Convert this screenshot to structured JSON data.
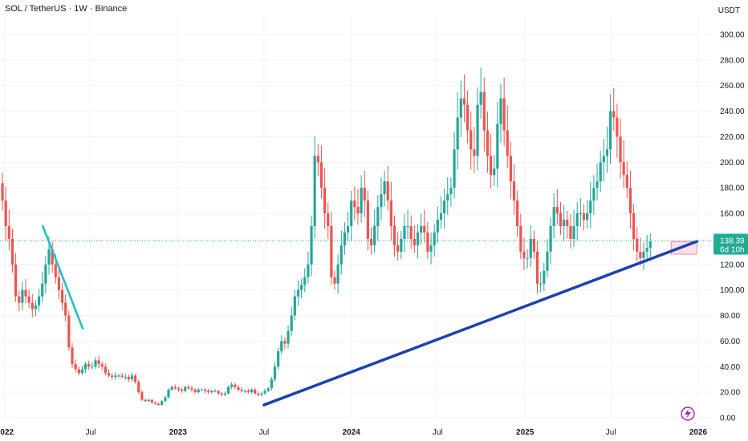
{
  "header": {
    "title": "SOL / TetherUS · 1W · Binance",
    "unit": "USDT"
  },
  "price_tag": {
    "price": "138.39",
    "countdown": "6d 10h",
    "color": "#22ab94"
  },
  "colors": {
    "up": "#26a69a",
    "down": "#ef5350",
    "trendline_main": "#1e40af",
    "trendline_small": "#22c1c3",
    "zone": "#f8bbd0",
    "grid": "#f0f3fa"
  },
  "chart_data": {
    "type": "candlestick",
    "y_axis": {
      "ticks": [
        "300.00",
        "280.00",
        "260.00",
        "240.00",
        "220.00",
        "200.00",
        "180.00",
        "160.00",
        "140.00",
        "120.00",
        "100.00",
        "80.00",
        "60.00",
        "40.00",
        "20.00",
        "0.00"
      ],
      "range": [
        0,
        300
      ],
      "position": "right"
    },
    "x_axis": {
      "labels": [
        {
          "text": "2022",
          "year": true,
          "date": "2022-01-01"
        },
        {
          "text": "Jul",
          "year": false,
          "date": "2022-07-01"
        },
        {
          "text": "2023",
          "year": true,
          "date": "2023-01-01"
        },
        {
          "text": "Jul",
          "year": false,
          "date": "2023-07-01"
        },
        {
          "text": "2024",
          "year": true,
          "date": "2024-01-01"
        },
        {
          "text": "Jul",
          "year": false,
          "date": "2024-07-01"
        },
        {
          "text": "2025",
          "year": true,
          "date": "2025-01-01"
        },
        {
          "text": "Jul",
          "year": false,
          "date": "2025-07-01"
        },
        {
          "text": "2026",
          "year": true,
          "date": "2026-01-01"
        }
      ]
    },
    "grid": true,
    "weekly_close": [
      170,
      150,
      140,
      120,
      95,
      90,
      100,
      95,
      90,
      85,
      88,
      95,
      105,
      120,
      132,
      120,
      110,
      100,
      90,
      80,
      55,
      42,
      38,
      35,
      38,
      42,
      40,
      40,
      45,
      42,
      40,
      35,
      33,
      32,
      33,
      33,
      32,
      32,
      30,
      33,
      28,
      20,
      14,
      13,
      14,
      12,
      11,
      10,
      13,
      16,
      22,
      24,
      23,
      22,
      21,
      24,
      23,
      22,
      20,
      22,
      22,
      21,
      20,
      21,
      21,
      19,
      18,
      19,
      24,
      26,
      24,
      22,
      21,
      21,
      20,
      22,
      19,
      18,
      19,
      21,
      23,
      30,
      40,
      52,
      60,
      58,
      68,
      80,
      95,
      100,
      104,
      110,
      120,
      150,
      205,
      200,
      180,
      160,
      150,
      110,
      105,
      120,
      135,
      145,
      150,
      170,
      165,
      160,
      180,
      170,
      140,
      135,
      150,
      165,
      175,
      185,
      170,
      150,
      135,
      130,
      140,
      150,
      150,
      140,
      135,
      145,
      150,
      145,
      130,
      135,
      145,
      155,
      160,
      170,
      175,
      180,
      210,
      235,
      250,
      245,
      225,
      210,
      205,
      245,
      255,
      225,
      205,
      190,
      195,
      230,
      250,
      225,
      205,
      185,
      170,
      150,
      130,
      125,
      125,
      140,
      130,
      105,
      105,
      115,
      130,
      150,
      165,
      160,
      150,
      155,
      150,
      140,
      150,
      160,
      160,
      155,
      160,
      170,
      180,
      185,
      200,
      205,
      210,
      240,
      235,
      220,
      200,
      190,
      180,
      160,
      140,
      130,
      125,
      130,
      133,
      138
    ],
    "annotations": [
      {
        "type": "trendline",
        "name": "main-uptrend",
        "from": {
          "date": "2023-07-01",
          "price": 10
        },
        "to": {
          "date": "2025-12-29",
          "price": 138
        }
      },
      {
        "type": "trendline",
        "name": "early-downtrend",
        "from": {
          "date": "2022-03-22",
          "price": 150
        },
        "to": {
          "date": "2022-06-14",
          "price": 70
        }
      },
      {
        "type": "zone",
        "name": "support-zone",
        "from_date": "2025-11-05",
        "to_date": "2025-12-29",
        "price_low": 128,
        "price_high": 138
      }
    ],
    "current_price": 138.39
  }
}
